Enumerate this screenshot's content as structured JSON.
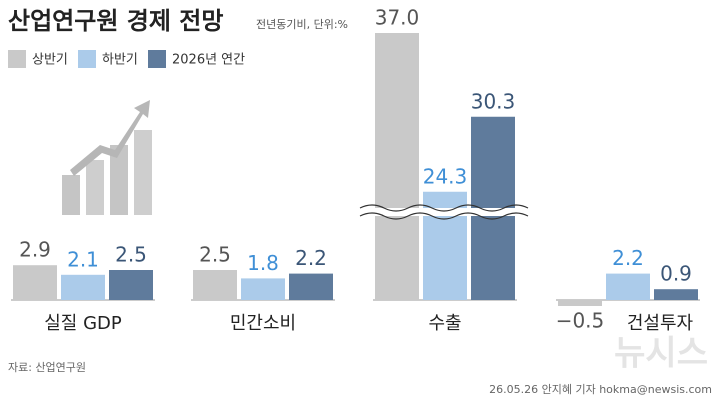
{
  "chart_data": {
    "type": "bar",
    "title": "산업연구원 경제 전망",
    "subtitle": "전년동기비, 단위:%",
    "categories": [
      "실질 GDP",
      "민간소비",
      "수출",
      "건설투자"
    ],
    "series": [
      {
        "name": "상반기",
        "color": "#c9c9c9",
        "label_color": "#555555",
        "values": [
          2.9,
          2.5,
          37.0,
          -0.5
        ],
        "value_labels": [
          "2.9",
          "2.5",
          "37.0",
          "−0.5"
        ]
      },
      {
        "name": "하반기",
        "color": "#abcbea",
        "label_color": "#3f8fd6",
        "values": [
          2.1,
          1.8,
          24.3,
          2.2
        ],
        "value_labels": [
          "2.1",
          "1.8",
          "24.3",
          "2.2"
        ]
      },
      {
        "name": "2026년 연간",
        "color": "#5f7b9c",
        "label_color": "#3b5677",
        "values": [
          2.5,
          2.2,
          30.3,
          0.9
        ],
        "value_labels": [
          "2.5",
          "2.2",
          "30.3",
          "0.9"
        ]
      }
    ],
    "axis_break": [
      7,
      23
    ],
    "source": "자료: 산업연구원",
    "credit": "26.05.26 안지혜 기자 hokma@newsis.com",
    "watermark": "뉴시스"
  }
}
